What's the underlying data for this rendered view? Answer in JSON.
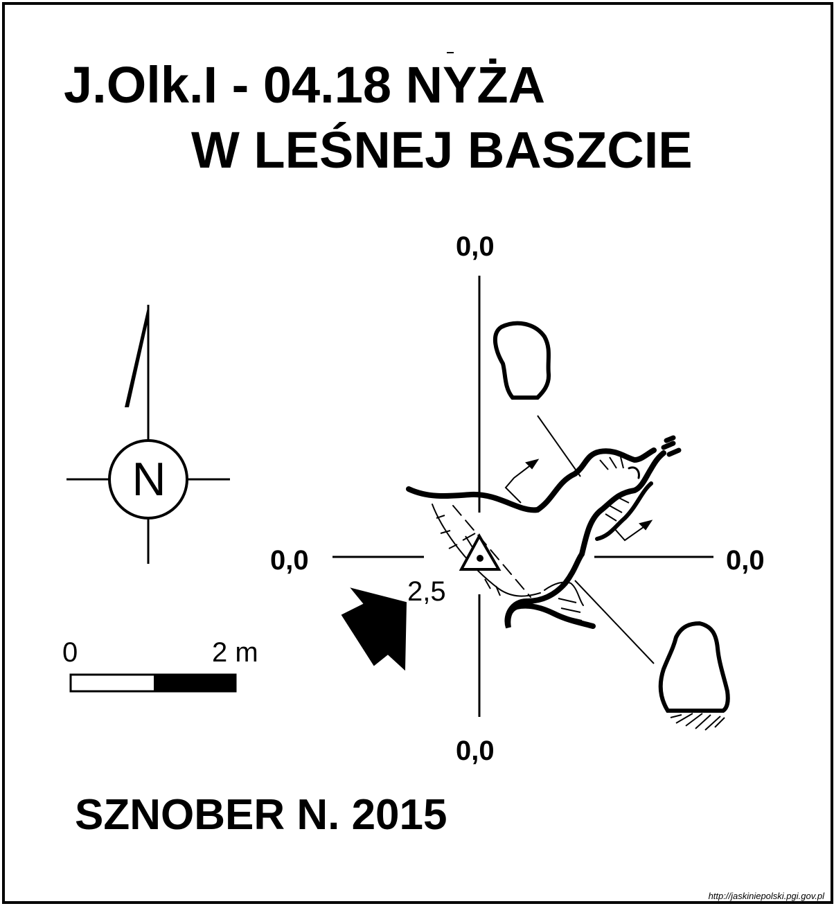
{
  "title": {
    "line1": "J.Olk.I - 04.18 NYŻA",
    "line2": "W LEŚNEJ BASZCIE"
  },
  "coordinates": {
    "top": "0,0",
    "left": "0,0",
    "right": "0,0",
    "bottom": "0,0"
  },
  "depth_label": "2,5",
  "north_arrow": {
    "letter": "N",
    "icon": "compass-north-icon"
  },
  "scale_bar": {
    "start_label": "0",
    "end_label": "2 m"
  },
  "author": "SZNOBER N.  2015",
  "source_url": "http://jaskiniepolski.pgi.gov.pl",
  "icons": [
    "entrance-triangle-icon",
    "entrance-direction-arrow-icon",
    "compass-north-icon"
  ],
  "colors": {
    "ink": "#000000",
    "paper": "#ffffff"
  }
}
